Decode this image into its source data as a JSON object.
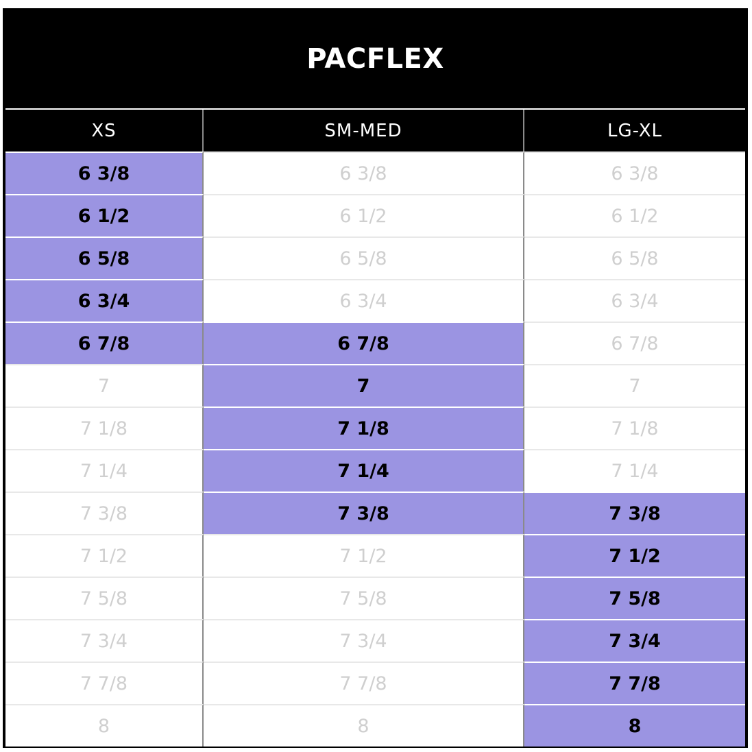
{
  "title": "PACFLEX",
  "highlight_color": "#9b94e2",
  "columns": [
    "XS",
    "SM-MED",
    "LG-XL"
  ],
  "rows": [
    "6 3/8",
    "6 1/2",
    "6 5/8",
    "6 3/4",
    "6 7/8",
    "7",
    "7 1/8",
    "7 1/4",
    "7 3/8",
    "7 1/2",
    "7 5/8",
    "7 3/4",
    "7 7/8",
    "8"
  ],
  "highlighted": {
    "XS": [
      "6 3/8",
      "6 1/2",
      "6 5/8",
      "6 3/4",
      "6 7/8"
    ],
    "SM-MED": [
      "6 7/8",
      "7",
      "7 1/8",
      "7 1/4",
      "7 3/8"
    ],
    "LG-XL": [
      "7 3/8",
      "7 1/2",
      "7 5/8",
      "7 3/4",
      "7 7/8",
      "8"
    ]
  }
}
